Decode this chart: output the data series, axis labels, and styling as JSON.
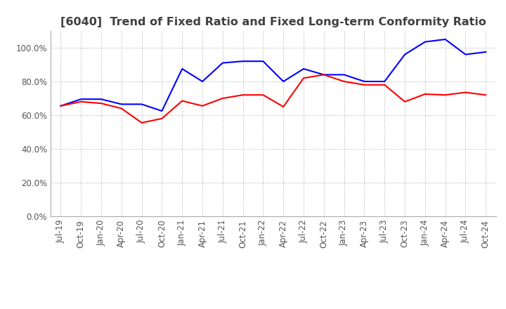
{
  "title": "[6040]  Trend of Fixed Ratio and Fixed Long-term Conformity Ratio",
  "x_labels": [
    "Jul-19",
    "Oct-19",
    "Jan-20",
    "Apr-20",
    "Jul-20",
    "Oct-20",
    "Jan-21",
    "Apr-21",
    "Jul-21",
    "Oct-21",
    "Jan-22",
    "Apr-22",
    "Jul-22",
    "Oct-22",
    "Jan-23",
    "Apr-23",
    "Jul-23",
    "Oct-23",
    "Jan-24",
    "Apr-24",
    "Jul-24",
    "Oct-24"
  ],
  "fixed_ratio": [
    0.655,
    0.695,
    0.695,
    0.665,
    0.665,
    0.625,
    0.875,
    0.8,
    0.91,
    0.92,
    0.92,
    0.8,
    0.875,
    0.84,
    0.84,
    0.8,
    0.8,
    0.96,
    1.035,
    1.05,
    0.96,
    0.975
  ],
  "fixed_lt_ratio": [
    0.655,
    0.68,
    0.67,
    0.64,
    0.555,
    0.58,
    0.685,
    0.655,
    0.7,
    0.72,
    0.72,
    0.65,
    0.82,
    0.84,
    0.8,
    0.78,
    0.78,
    0.68,
    0.725,
    0.72,
    0.735,
    0.72
  ],
  "ylim": [
    0.0,
    1.1
  ],
  "yticks": [
    0.0,
    0.2,
    0.4,
    0.6,
    0.8,
    1.0
  ],
  "fixed_ratio_color": "#0000FF",
  "fixed_lt_ratio_color": "#FF0000",
  "background_color": "#FFFFFF",
  "grid_color": "#AAAAAA",
  "title_color": "#404040",
  "title_fontsize": 11.5,
  "legend_fontsize": 9,
  "tick_fontsize": 8.5
}
